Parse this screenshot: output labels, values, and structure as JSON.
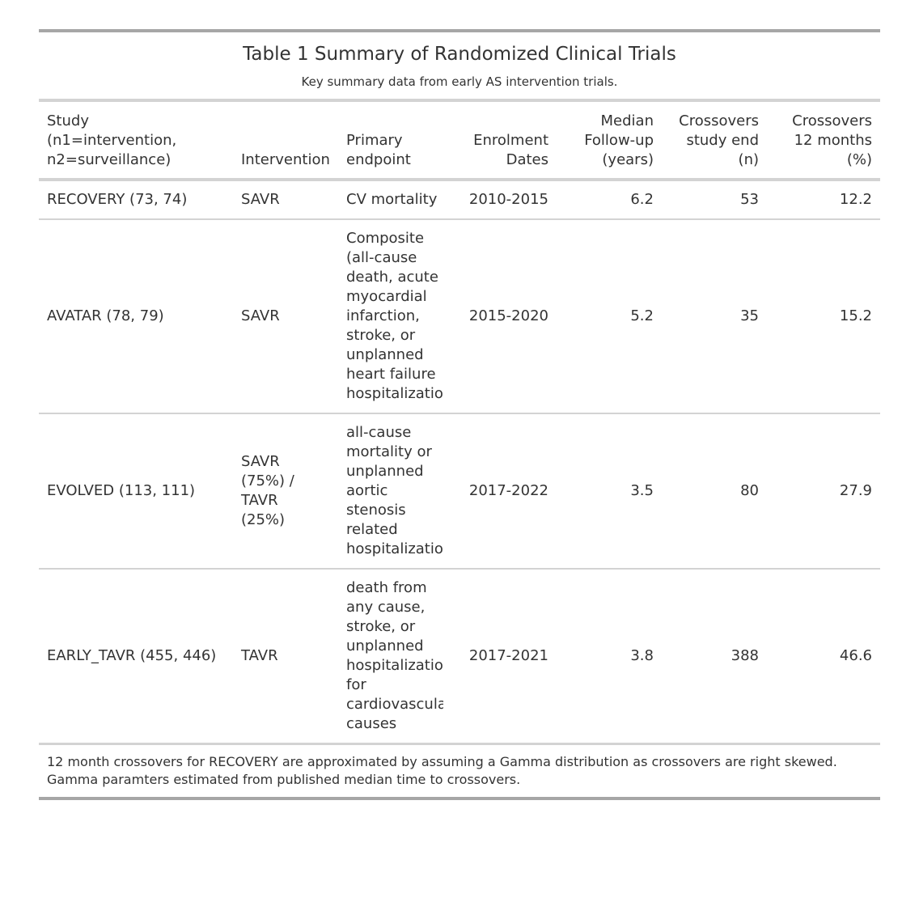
{
  "table": {
    "title": "Table 1 Summary of Randomized Clinical Trials",
    "subtitle": "Key summary data from early AS intervention trials.",
    "headers": {
      "study": "Study (n1=intervention, n2=surveillance)",
      "intervention": "Intervention",
      "endpoint": "Primary endpoint",
      "dates": "Enrolment Dates",
      "followup": "Median Follow-up (years)",
      "crossovers_end": "Crossovers study end (n)",
      "crossovers_12": "Crossovers 12 months (%)"
    },
    "rows": [
      {
        "study": "RECOVERY (73, 74)",
        "intervention": "SAVR",
        "endpoint": "CV mortality",
        "dates": "2010-2015",
        "followup": "6.2",
        "crossovers_end": "53",
        "crossovers_12": "12.2"
      },
      {
        "study": "AVATAR (78, 79)",
        "intervention": "SAVR",
        "endpoint": "Composite (all-cause death, acute myocardial infarction, stroke, or unplanned heart failure hospitalization)",
        "dates": "2015-2020",
        "followup": "5.2",
        "crossovers_end": "35",
        "crossovers_12": "15.2"
      },
      {
        "study": "EVOLVED (113, 111)",
        "intervention": "SAVR (75%) / TAVR (25%)",
        "endpoint": "all-cause mortality or unplanned aortic stenosis related hospitalization",
        "dates": "2017-2022",
        "followup": "3.5",
        "crossovers_end": "80",
        "crossovers_12": "27.9"
      },
      {
        "study": "EARLY_TAVR (455, 446)",
        "intervention": "TAVR",
        "endpoint": "death from any cause, stroke, or unplanned hospitalization for cardiovascular causes",
        "dates": "2017-2021",
        "followup": "3.8",
        "crossovers_end": "388",
        "crossovers_12": "46.6"
      }
    ],
    "footnote": "12 month crossovers for RECOVERY are approximated by assuming a Gamma distribution as crossovers are right skewed. Gamma paramters estimated from published median time to crossovers."
  }
}
